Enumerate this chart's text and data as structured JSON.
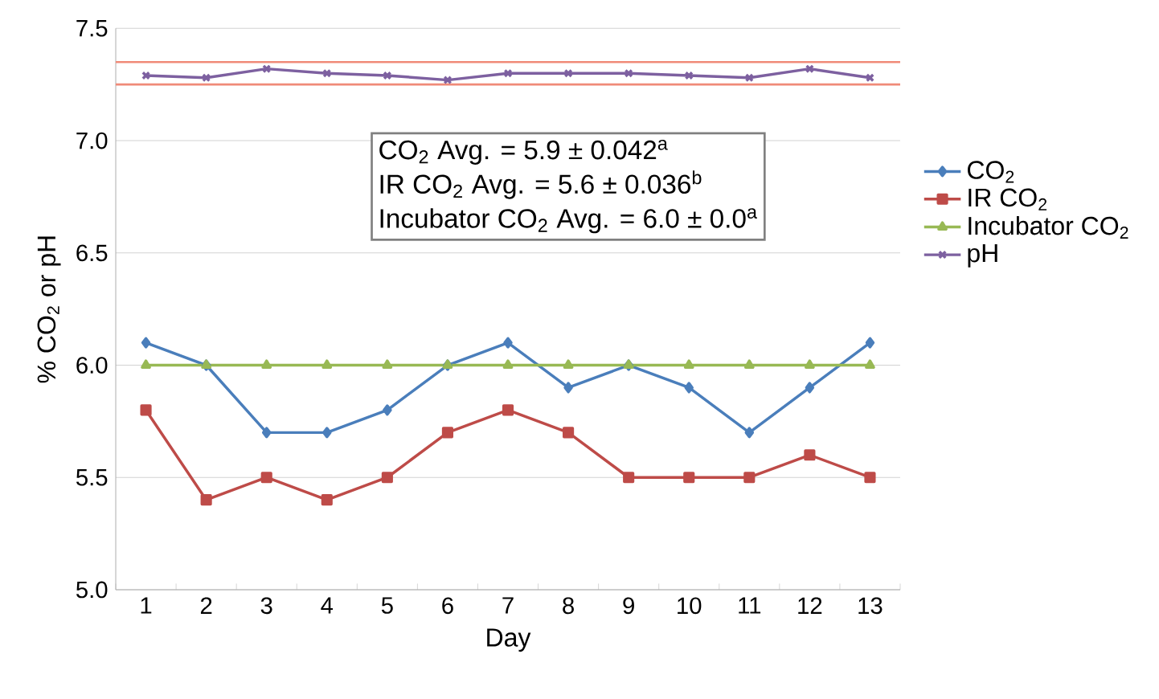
{
  "chart_data": {
    "type": "line",
    "xlabel": "Day",
    "ylabel": "% CO$_{2}$ or pH",
    "categories": [
      "1",
      "2",
      "3",
      "4",
      "5",
      "6",
      "7",
      "8",
      "9",
      "10",
      "11",
      "12",
      "13"
    ],
    "series": [
      {
        "name": "CO$_{2}$",
        "color": "#4a7ebb",
        "marker": "diamond",
        "values": [
          6.1,
          6.0,
          5.7,
          5.7,
          5.8,
          6.0,
          6.1,
          5.9,
          6.0,
          5.9,
          5.7,
          5.9,
          6.1
        ]
      },
      {
        "name": "IR CO$_{2}$",
        "color": "#be4b48",
        "marker": "square",
        "values": [
          5.8,
          5.4,
          5.5,
          5.4,
          5.5,
          5.7,
          5.8,
          5.7,
          5.5,
          5.5,
          5.5,
          5.6,
          5.5
        ]
      },
      {
        "name": "Incubator CO$_{2}$",
        "color": "#98b954",
        "marker": "triangle",
        "values": [
          6.0,
          6.0,
          6.0,
          6.0,
          6.0,
          6.0,
          6.0,
          6.0,
          6.0,
          6.0,
          6.0,
          6.0,
          6.0
        ]
      },
      {
        "name": "pH",
        "color": "#7d60a0",
        "marker": "cross",
        "values": [
          7.29,
          7.28,
          7.32,
          7.3,
          7.29,
          7.27,
          7.3,
          7.3,
          7.3,
          7.29,
          7.28,
          7.32,
          7.28
        ]
      }
    ],
    "ylim": [
      5.0,
      7.5
    ],
    "yticks": [
      {
        "value": 5.0,
        "label": "5.0"
      },
      {
        "value": 5.5,
        "label": "5.5"
      },
      {
        "value": 6.0,
        "label": "6.0"
      },
      {
        "value": 6.5,
        "label": "6.5"
      },
      {
        "value": 7.0,
        "label": "7.0"
      },
      {
        "value": 7.5,
        "label": "7.5"
      }
    ],
    "ref_lines": [
      {
        "axis": "y",
        "value": 7.35,
        "color": "#f08a78"
      },
      {
        "axis": "y",
        "value": 7.25,
        "color": "#f08a78"
      }
    ],
    "annotations": [
      "CO$_{2}$ Avg. = 5.9 ± 0.042$^{a}$",
      "IR CO$_{2}$ Avg. = 5.6 ± 0.036$^{b}$",
      "Incubator CO$_{2}$ Avg. = 6.0 ± 0.0$^{a}$"
    ],
    "grid": "y",
    "legend": "right",
    "line_style": "solid"
  }
}
